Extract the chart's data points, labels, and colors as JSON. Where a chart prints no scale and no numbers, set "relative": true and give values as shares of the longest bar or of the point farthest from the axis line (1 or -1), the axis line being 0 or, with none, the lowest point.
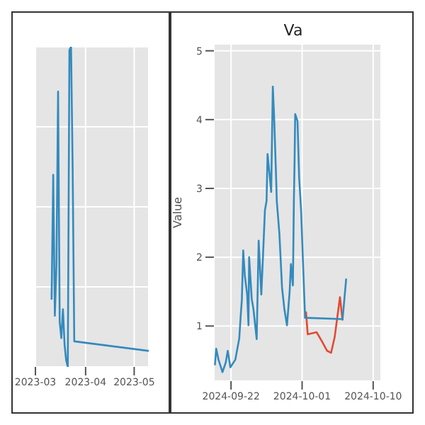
{
  "chart_data": [
    {
      "type": "line",
      "relative": true,
      "grid": true,
      "legend": false,
      "marker": "none",
      "line_style": "solid",
      "xlim": [
        "2023-03-01",
        "2023-05-10"
      ],
      "xticks": [
        "2023-03",
        "2023-04",
        "2023-05"
      ],
      "series": [
        {
          "color": "#348abd",
          "x": [
            "2023-03-11",
            "2023-03-12",
            "2023-03-13",
            "2023-03-14",
            "2023-03-15",
            "2023-03-16",
            "2023-03-17",
            "2023-03-18",
            "2023-03-19",
            "2023-03-20",
            "2023-03-21",
            "2023-03-22",
            "2023-03-23",
            "2023-03-24",
            "2023-03-25",
            "2023-05-10"
          ],
          "values": [
            0.21,
            0.6,
            0.16,
            0.32,
            0.86,
            0.14,
            0.09,
            0.18,
            0.07,
            0.02,
            0,
            0.99,
            1,
            0.62,
            0.08,
            0.05
          ]
        }
      ]
    },
    {
      "type": "line",
      "title": "Va",
      "ylabel": "Value",
      "grid": true,
      "legend": false,
      "marker": "none",
      "line_style": "solid",
      "xlim": [
        "2024-09-19T20:00",
        "2024-10-11"
      ],
      "xticks": [
        "2024-09-22",
        "2024-10-01",
        "2024-10-10"
      ],
      "ylim": [
        0.2,
        5.1
      ],
      "yticks": [
        1,
        2,
        3,
        4,
        5
      ],
      "series": [
        {
          "color": "#e24a33",
          "x": [
            "2024-10-01T09:00",
            "2024-10-01T12:00",
            "2024-10-01T17:00",
            "2024-10-02T20:00",
            "2024-10-03T12:00",
            "2024-10-04T04:00",
            "2024-10-04T16:00",
            "2024-10-05T03:00",
            "2024-10-05T19:00",
            "2024-10-06T03:00"
          ],
          "values": [
            1.12,
            1.2,
            0.88,
            0.91,
            0.78,
            0.64,
            0.61,
            0.84,
            1.42,
            1.08
          ]
        },
        {
          "color": "#348abd",
          "x": [
            "2024-09-19T23:00",
            "2024-09-20T03:00",
            "2024-09-20T10:00",
            "2024-09-20T22:00",
            "2024-09-21T08:00",
            "2024-09-21T14:00",
            "2024-09-21T22:00",
            "2024-09-22T13:00",
            "2024-09-23T01:00",
            "2024-09-23T05:00",
            "2024-09-23T09:00",
            "2024-09-23T13:00",
            "2024-09-23T18:00",
            "2024-09-24T01:00",
            "2024-09-24T05:00",
            "2024-09-24T07:00",
            "2024-09-24T15:00",
            "2024-09-24T20:00",
            "2024-09-25T06:00",
            "2024-09-25T12:00",
            "2024-09-25T20:00",
            "2024-09-26T01:00",
            "2024-09-26T07:00",
            "2024-09-26T12:00",
            "2024-09-26T15:00",
            "2024-09-26T22:00",
            "2024-09-27T02:00",
            "2024-09-27T07:00",
            "2024-09-27T11:00",
            "2024-09-27T17:00",
            "2024-09-27T19:00",
            "2024-09-28T03:00",
            "2024-09-28T11:00",
            "2024-09-28T18:00",
            "2024-09-29T02:00",
            "2024-09-29T10:00",
            "2024-09-29T14:00",
            "2024-09-29T20:00",
            "2024-09-29T23:00",
            "2024-09-30T01:00",
            "2024-09-30T03:00",
            "2024-09-30T10:00",
            "2024-09-30T15:00",
            "2024-09-30T21:00",
            "2024-10-01T01:00",
            "2024-10-01T09:00",
            "2024-10-06T03:00",
            "2024-10-06T14:00"
          ],
          "values": [
            0.43,
            0.67,
            0.51,
            0.33,
            0.47,
            0.64,
            0.4,
            0.51,
            0.82,
            1.12,
            1.39,
            2.1,
            1.73,
            1.46,
            1.01,
            2.0,
            1.39,
            1.25,
            0.81,
            2.24,
            1.46,
            2.0,
            2.68,
            2.82,
            3.5,
            3.16,
            2.95,
            4.48,
            4.04,
            3.16,
            2.82,
            2.34,
            1.56,
            1.25,
            1.01,
            1.49,
            1.9,
            1.59,
            2.82,
            3.36,
            4.08,
            3.98,
            3.16,
            2.68,
            2.14,
            1.12,
            1.1,
            1.69
          ]
        }
      ]
    }
  ]
}
